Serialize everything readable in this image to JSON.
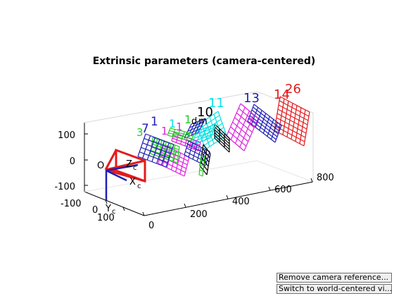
{
  "figure": {
    "title": "Extrinsic parameters (camera-centered)",
    "z_ticks": [
      "100",
      "0",
      "-100"
    ],
    "x_ticks": [
      "-100",
      "0",
      "100"
    ],
    "y_ticks": [
      "0",
      "200",
      "400",
      "600",
      "800"
    ],
    "camera_labels": {
      "origin": "O",
      "z_axis": "Z",
      "z_sub": "c",
      "x_axis": "X",
      "x_sub": "c",
      "y_axis": "Y",
      "y_sub": "c"
    },
    "board_labels": [
      {
        "text": "14",
        "color": "#e31a1c"
      },
      {
        "text": "26",
        "color": "#e31a1c"
      },
      {
        "text": "13",
        "color": "#1f1fb4"
      },
      {
        "text": "11",
        "color": "#11e1e1"
      },
      {
        "text": "10",
        "color": "#000000"
      },
      {
        "text": "7",
        "color": "#1f1fb4"
      },
      {
        "text": "1",
        "color": "#1f1fb4"
      },
      {
        "text": "1",
        "color": "#11e1e1"
      },
      {
        "text": "1",
        "color": "#e01fe0"
      },
      {
        "text": "1",
        "color": "#1fd01f"
      },
      {
        "text": "1",
        "color": "#e01fe0"
      },
      {
        "text": "3",
        "color": "#1fd01f"
      },
      {
        "text": "d",
        "color": "#000000"
      },
      {
        "text": "m",
        "color": "#000000"
      }
    ],
    "colors": {
      "red": "#e31a1c",
      "blue": "#1f1fb4",
      "cyan": "#11e1e1",
      "magenta": "#e01fe0",
      "green": "#1fd01f",
      "black": "#000000"
    }
  },
  "buttons": {
    "remove_camera_reference": "Remove camera reference...",
    "switch_world_centered": "Switch to world-centered vi..."
  }
}
